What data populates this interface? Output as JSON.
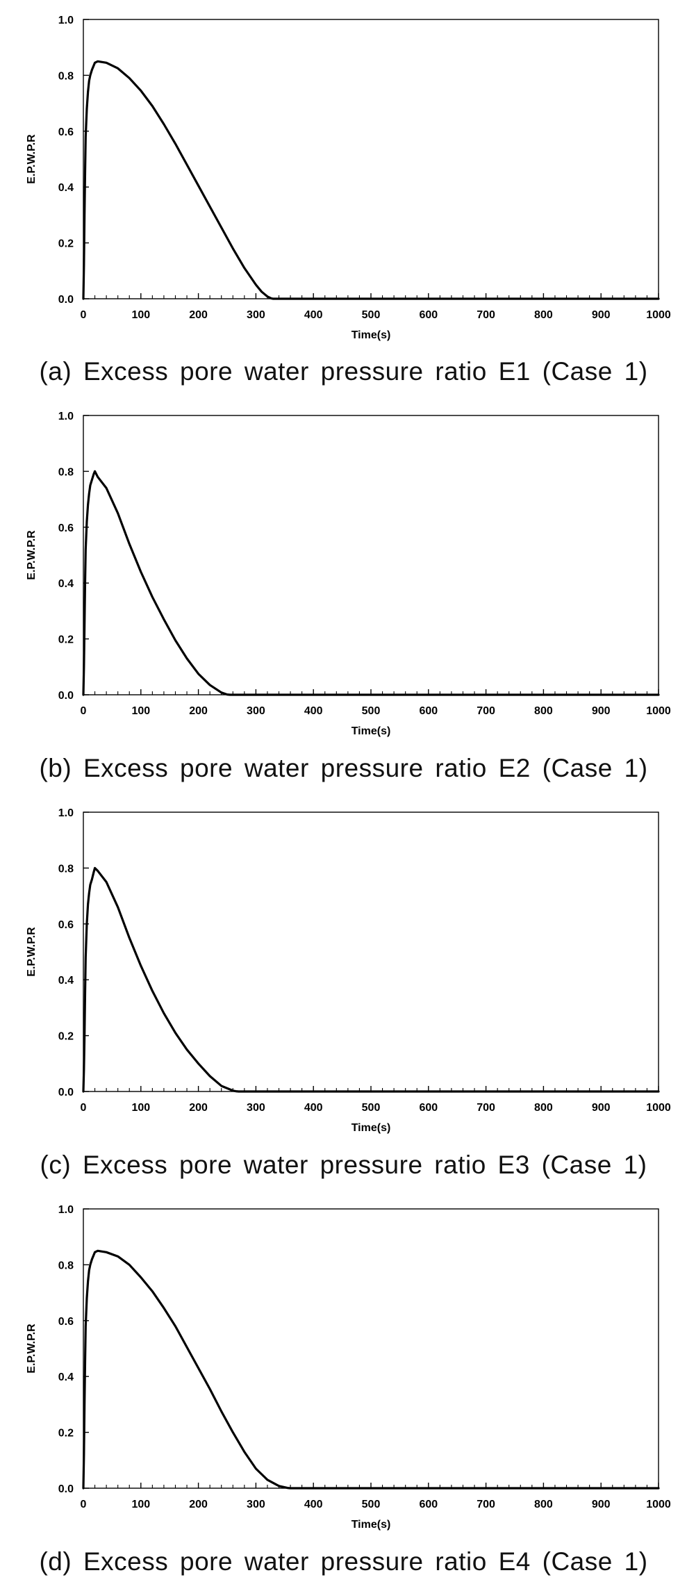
{
  "chart_data": [
    {
      "type": "line",
      "caption": "(a) Excess pore water pressure ratio E1 (Case 1)",
      "xlabel": "Time(s)",
      "ylabel": "E.P.W.P.R",
      "xlim": [
        0,
        1000
      ],
      "ylim": [
        0,
        1.0
      ],
      "xticks": [
        "0",
        "100",
        "200",
        "300",
        "400",
        "500",
        "600",
        "700",
        "800",
        "900",
        "1000"
      ],
      "yticks": [
        "0.0",
        "0.2",
        "0.4",
        "0.6",
        "0.8",
        "1.0"
      ],
      "grid": false,
      "series": [
        {
          "x": [
            0,
            1,
            2,
            3,
            4,
            6,
            8,
            10,
            12,
            15,
            18,
            20,
            25,
            40,
            60,
            80,
            100,
            120,
            140,
            160,
            180,
            200,
            220,
            240,
            260,
            280,
            300,
            310,
            320,
            327,
            330,
            400,
            500,
            600,
            700,
            800,
            900,
            1000
          ],
          "y": [
            0.0,
            0.12,
            0.3,
            0.45,
            0.58,
            0.68,
            0.74,
            0.78,
            0.8,
            0.82,
            0.835,
            0.845,
            0.85,
            0.845,
            0.825,
            0.79,
            0.745,
            0.69,
            0.625,
            0.555,
            0.48,
            0.405,
            0.33,
            0.255,
            0.18,
            0.11,
            0.05,
            0.025,
            0.008,
            0.001,
            0.0,
            0.0,
            0.0,
            0.0,
            0.0,
            0.0,
            0.0,
            0.0
          ]
        }
      ]
    },
    {
      "type": "line",
      "caption": "(b) Excess pore water pressure ratio E2 (Case 1)",
      "xlabel": "Time(s)",
      "ylabel": "E.P.W.P.R",
      "xlim": [
        0,
        1000
      ],
      "ylim": [
        0,
        1.0
      ],
      "xticks": [
        "0",
        "100",
        "200",
        "300",
        "400",
        "500",
        "600",
        "700",
        "800",
        "900",
        "1000"
      ],
      "yticks": [
        "0.0",
        "0.2",
        "0.4",
        "0.6",
        "0.8",
        "1.0"
      ],
      "grid": false,
      "series": [
        {
          "x": [
            0,
            1,
            2,
            3,
            4,
            6,
            8,
            10,
            12,
            15,
            18,
            20,
            25,
            40,
            60,
            80,
            100,
            120,
            140,
            160,
            180,
            200,
            220,
            240,
            250,
            255,
            300,
            400,
            500,
            600,
            700,
            800,
            900,
            1000
          ],
          "y": [
            0.0,
            0.1,
            0.25,
            0.4,
            0.52,
            0.62,
            0.68,
            0.72,
            0.75,
            0.77,
            0.79,
            0.8,
            0.78,
            0.74,
            0.65,
            0.54,
            0.44,
            0.35,
            0.27,
            0.195,
            0.13,
            0.075,
            0.035,
            0.008,
            0.001,
            0.0,
            0.0,
            0.0,
            0.0,
            0.0,
            0.0,
            0.0,
            0.0,
            0.0
          ]
        }
      ]
    },
    {
      "type": "line",
      "caption": "(c) Excess pore water pressure ratio E3 (Case 1)",
      "xlabel": "Time(s)",
      "ylabel": "E.P.W.P.R",
      "xlim": [
        0,
        1000
      ],
      "ylim": [
        0,
        1.0
      ],
      "xticks": [
        "0",
        "100",
        "200",
        "300",
        "400",
        "500",
        "600",
        "700",
        "800",
        "900",
        "1000"
      ],
      "yticks": [
        "0.0",
        "0.2",
        "0.4",
        "0.6",
        "0.8",
        "1.0"
      ],
      "grid": false,
      "series": [
        {
          "x": [
            0,
            1,
            2,
            3,
            4,
            6,
            8,
            10,
            12,
            15,
            18,
            20,
            25,
            40,
            60,
            80,
            100,
            120,
            140,
            160,
            180,
            200,
            220,
            240,
            260,
            265,
            270,
            300,
            400,
            500,
            600,
            700,
            800,
            900,
            1000
          ],
          "y": [
            0.0,
            0.08,
            0.2,
            0.35,
            0.48,
            0.6,
            0.67,
            0.71,
            0.74,
            0.76,
            0.785,
            0.8,
            0.79,
            0.75,
            0.66,
            0.55,
            0.45,
            0.36,
            0.28,
            0.21,
            0.15,
            0.1,
            0.055,
            0.02,
            0.003,
            0.001,
            0.0,
            0.0,
            0.0,
            0.0,
            0.0,
            0.0,
            0.0,
            0.0,
            0.0
          ]
        }
      ]
    },
    {
      "type": "line",
      "caption": "(d) Excess pore water pressure ratio E4 (Case 1)",
      "xlabel": "Time(s)",
      "ylabel": "E.P.W.P.R",
      "xlim": [
        0,
        1000
      ],
      "ylim": [
        0,
        1.0
      ],
      "xticks": [
        "0",
        "100",
        "200",
        "300",
        "400",
        "500",
        "600",
        "700",
        "800",
        "900",
        "1000"
      ],
      "yticks": [
        "0.0",
        "0.2",
        "0.4",
        "0.6",
        "0.8",
        "1.0"
      ],
      "grid": false,
      "series": [
        {
          "x": [
            0,
            1,
            2,
            3,
            4,
            6,
            8,
            10,
            12,
            15,
            18,
            20,
            25,
            40,
            60,
            80,
            100,
            120,
            140,
            160,
            180,
            200,
            220,
            240,
            260,
            280,
            300,
            320,
            340,
            355,
            360,
            400,
            500,
            600,
            700,
            800,
            900,
            1000
          ],
          "y": [
            0.0,
            0.12,
            0.3,
            0.45,
            0.58,
            0.68,
            0.74,
            0.78,
            0.8,
            0.82,
            0.835,
            0.845,
            0.85,
            0.845,
            0.83,
            0.8,
            0.755,
            0.705,
            0.645,
            0.58,
            0.505,
            0.43,
            0.355,
            0.275,
            0.2,
            0.13,
            0.07,
            0.03,
            0.008,
            0.001,
            0.0,
            0.0,
            0.0,
            0.0,
            0.0,
            0.0,
            0.0,
            0.0
          ]
        }
      ]
    }
  ]
}
